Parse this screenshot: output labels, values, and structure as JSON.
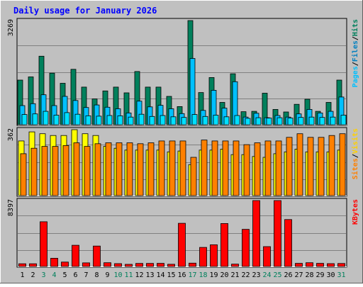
{
  "chart_data": {
    "type": "bar",
    "title": "Daily usage for January 2026",
    "categories": [
      "1",
      "2",
      "3",
      "4",
      "5",
      "6",
      "7",
      "8",
      "9",
      "10",
      "11",
      "12",
      "13",
      "14",
      "15",
      "16",
      "17",
      "18",
      "19",
      "20",
      "21",
      "22",
      "23",
      "24",
      "25",
      "26",
      "27",
      "28",
      "29",
      "30",
      "31"
    ],
    "weekend_days": [
      "3",
      "4",
      "10",
      "11",
      "17",
      "18",
      "24",
      "25",
      "31"
    ],
    "panels": [
      {
        "id": "hits-files-pages",
        "max_label": "3269",
        "ylim": [
          0,
          3269
        ],
        "series": [
          {
            "name": "Hits",
            "color": "#00805c",
            "values": [
              1400,
              1500,
              2150,
              1620,
              1300,
              1740,
              1180,
              810,
              1060,
              1180,
              1000,
              1670,
              1180,
              1180,
              890,
              570,
              3269,
              1010,
              1480,
              700,
              1600,
              410,
              420,
              990,
              480,
              400,
              640,
              800,
              420,
              700,
              1400
            ]
          },
          {
            "name": "Files",
            "color": "#00c0ff",
            "values": [
              600,
              660,
              940,
              600,
              890,
              760,
              540,
              620,
              550,
              500,
              370,
              740,
              560,
              610,
              500,
              350,
              2080,
              450,
              1080,
              520,
              1350,
              240,
              360,
              220,
              290,
              240,
              340,
              480,
              370,
              420,
              870
            ]
          },
          {
            "name": "Pages",
            "color": "#00e0ff",
            "values": [
              320,
              340,
              420,
              300,
              380,
              330,
              280,
              270,
              290,
              280,
              240,
              330,
              260,
              290,
              250,
              230,
              320,
              260,
              300,
              250,
              290,
              200,
              220,
              210,
              220,
              210,
              230,
              240,
              230,
              240,
              300
            ]
          }
        ]
      },
      {
        "id": "visits-sites",
        "max_label": "362",
        "ylim": [
          0,
          362
        ],
        "series": [
          {
            "name": "Visits",
            "color": "#ffff00",
            "values": [
              300,
              350,
              340,
              330,
              330,
              362,
              340,
              330,
              270,
              260,
              250,
              250,
              250,
              250,
              240,
              245,
              170,
              250,
              250,
              255,
              225,
              225,
              215,
              210,
              230,
              240,
              255,
              240,
              240,
              240,
              250
            ]
          },
          {
            "name": "Sites",
            "color": "#ff8000",
            "values": [
              230,
              260,
              270,
              270,
              275,
              290,
              270,
              285,
              290,
              290,
              290,
              285,
              290,
              300,
              300,
              300,
              210,
              305,
              300,
              300,
              300,
              280,
              290,
              300,
              300,
              320,
              340,
              320,
              320,
              330,
              340
            ]
          }
        ]
      },
      {
        "id": "kbytes",
        "max_label": "8397",
        "ylim": [
          0,
          8397
        ],
        "series": [
          {
            "name": "KBytes",
            "color": "#ff0000",
            "values": [
              340,
              340,
              5700,
              1050,
              560,
              2700,
              460,
              2600,
              480,
              360,
              270,
              390,
              390,
              400,
              280,
              5500,
              420,
              2430,
              2760,
              5470,
              300,
              4730,
              8397,
              2530,
              8397,
              5980,
              400,
              480,
              400,
              360,
              380
            ]
          }
        ]
      }
    ],
    "legend": {
      "panel1": [
        "Pages",
        "Files",
        "Hits"
      ],
      "panel1_colors": [
        "#00c0ff",
        "#0080c0",
        "#00805c"
      ],
      "panel2": [
        "Sites",
        "Visits"
      ],
      "panel2_colors": [
        "#ff8000",
        "#ffd000"
      ],
      "panel3": [
        "KBytes"
      ],
      "panel3_colors": [
        "#ff0000"
      ],
      "separator": "/"
    },
    "grid": true,
    "colors": {
      "background": "#c0c0c0",
      "title": "#0000ff",
      "weekday_label": "#000000",
      "weekend_label": "#00805c",
      "gridline": "#808080"
    }
  }
}
